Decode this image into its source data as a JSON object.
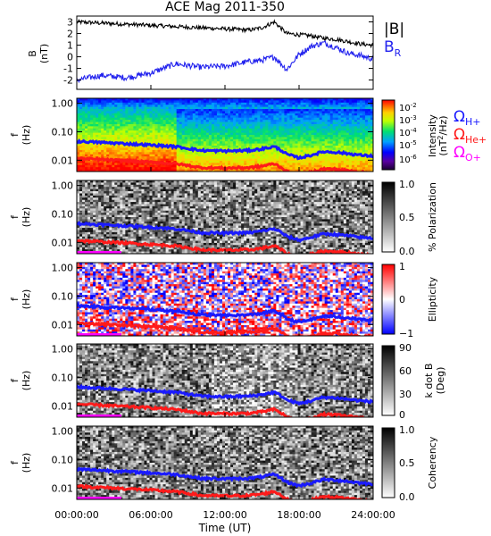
{
  "title": "ACE Mag 2011-350",
  "panel1": {
    "ylabel_main": "B",
    "ylabel_unit": "(nT)",
    "yticks": [
      "3",
      "2",
      "1",
      "0",
      "-1",
      "-2"
    ],
    "legend_total": "|B|",
    "legend_r": "B",
    "legend_r_sub": "R"
  },
  "freq_ylabel_main": "f",
  "freq_ylabel_unit": "(Hz)",
  "freq_ticks": [
    "1.00",
    "0.10",
    "0.01"
  ],
  "spec": {
    "cb_ticks": [
      "10",
      "10",
      "10",
      "10",
      "10"
    ],
    "cb_exps": [
      "-2",
      "-3",
      "-4",
      "-5",
      "-6"
    ],
    "cb_label_1": "Intensity",
    "cb_label_2": "(nT",
    "cb_label_sup": "2",
    "cb_label_3": "/Hz)",
    "omega_h": "Ω",
    "omega_h_sub": "H+",
    "omega_he": "Ω",
    "omega_he_sub": "He+",
    "omega_o": "Ω",
    "omega_o_sub": "O+"
  },
  "pol": {
    "cb_ticks": [
      "1.0",
      "0.5",
      "0.0"
    ],
    "cb_label": "% Polarization"
  },
  "ell": {
    "cb_ticks": [
      "1",
      "0",
      "−1"
    ],
    "cb_label": "Ellipticity"
  },
  "kdotb": {
    "cb_ticks": [
      "90",
      "60",
      "30",
      "0"
    ],
    "cb_label_1": "k dot B",
    "cb_label_2": "(Deg)"
  },
  "coh": {
    "cb_ticks": [
      "1.0",
      "0.5",
      "0.0"
    ],
    "cb_label": "Coherency"
  },
  "x_ticks": [
    "00:00:00",
    "06:00:00",
    "12:00:00",
    "18:00:00",
    "24:00:00"
  ],
  "x_label": "Time (UT)",
  "colors": {
    "h_plus": "#1a1aff",
    "he_plus": "#ff1a1a",
    "o_plus": "#ff00ff",
    "br": "#2222ee",
    "btotal": "#000000"
  },
  "chart_data": [
    {
      "type": "line",
      "ylabel": "B (nT)",
      "ylim": [
        -2.8,
        3.5
      ],
      "x": [
        0,
        2,
        4,
        6,
        8,
        10,
        12,
        14,
        15,
        16,
        17,
        18,
        19,
        20,
        21,
        22,
        23,
        24
      ],
      "series": [
        {
          "name": "|B|",
          "values": [
            3.0,
            2.9,
            2.8,
            2.7,
            2.6,
            2.5,
            2.4,
            2.3,
            2.5,
            3.0,
            2.0,
            1.9,
            1.8,
            1.6,
            1.5,
            1.3,
            1.1,
            1.0
          ]
        },
        {
          "name": "BR",
          "values": [
            -2.0,
            -1.6,
            -1.8,
            -1.4,
            -0.6,
            -0.9,
            -0.8,
            -0.4,
            -0.3,
            0.0,
            -1.1,
            0.2,
            0.9,
            1.2,
            0.8,
            0.3,
            0.1,
            -0.2
          ]
        }
      ]
    },
    {
      "type": "heatmap",
      "xlabel": "Time (UT)",
      "ylabel": "f (Hz)",
      "ylim": [
        0.004,
        1.5
      ],
      "yscale": "log",
      "colorbar": "Intensity (nT^2/Hz)",
      "colorbar_range": [
        1e-06,
        0.01
      ],
      "x": [
        0,
        2,
        4,
        6,
        8,
        10,
        12,
        14,
        15,
        16,
        17,
        18,
        19,
        20,
        21,
        22,
        23,
        24
      ],
      "series": [
        {
          "name": "ΩH+",
          "values": [
            0.046,
            0.042,
            0.038,
            0.034,
            0.03,
            0.022,
            0.021,
            0.022,
            0.025,
            0.03,
            0.016,
            0.012,
            0.015,
            0.02,
            0.019,
            0.017,
            0.015,
            0.014
          ]
        },
        {
          "name": "ΩHe+",
          "values": [
            0.0115,
            0.0105,
            0.0095,
            0.0085,
            0.0075,
            0.0055,
            0.0053,
            0.0055,
            0.0062,
            0.0075,
            0.004,
            0.003,
            0.0038,
            0.005,
            0.0048,
            0.0043,
            0.0038,
            0.0035
          ]
        },
        {
          "name": "ΩO+",
          "values": [
            0.0029,
            0.0026,
            0.0024,
            0.0021,
            0.0019,
            0.0014,
            0.0013,
            0.0014,
            0.0016,
            0.0019,
            0.001,
            0.0008,
            0.0009,
            0.0013,
            0.0012,
            0.0011,
            0.001,
            0.0009
          ]
        }
      ]
    },
    {
      "type": "heatmap",
      "ylabel": "f (Hz)",
      "yscale": "log",
      "colorbar": "% Polarization",
      "colorbar_range": [
        0.0,
        1.0
      ]
    },
    {
      "type": "heatmap",
      "ylabel": "f (Hz)",
      "yscale": "log",
      "colorbar": "Ellipticity",
      "colorbar_range": [
        -1,
        1
      ]
    },
    {
      "type": "heatmap",
      "ylabel": "f (Hz)",
      "yscale": "log",
      "colorbar": "k dot B (Deg)",
      "colorbar_range": [
        0,
        90
      ]
    },
    {
      "type": "heatmap",
      "ylabel": "f (Hz)",
      "yscale": "log",
      "colorbar": "Coherency",
      "colorbar_range": [
        0.0,
        1.0
      ]
    }
  ]
}
